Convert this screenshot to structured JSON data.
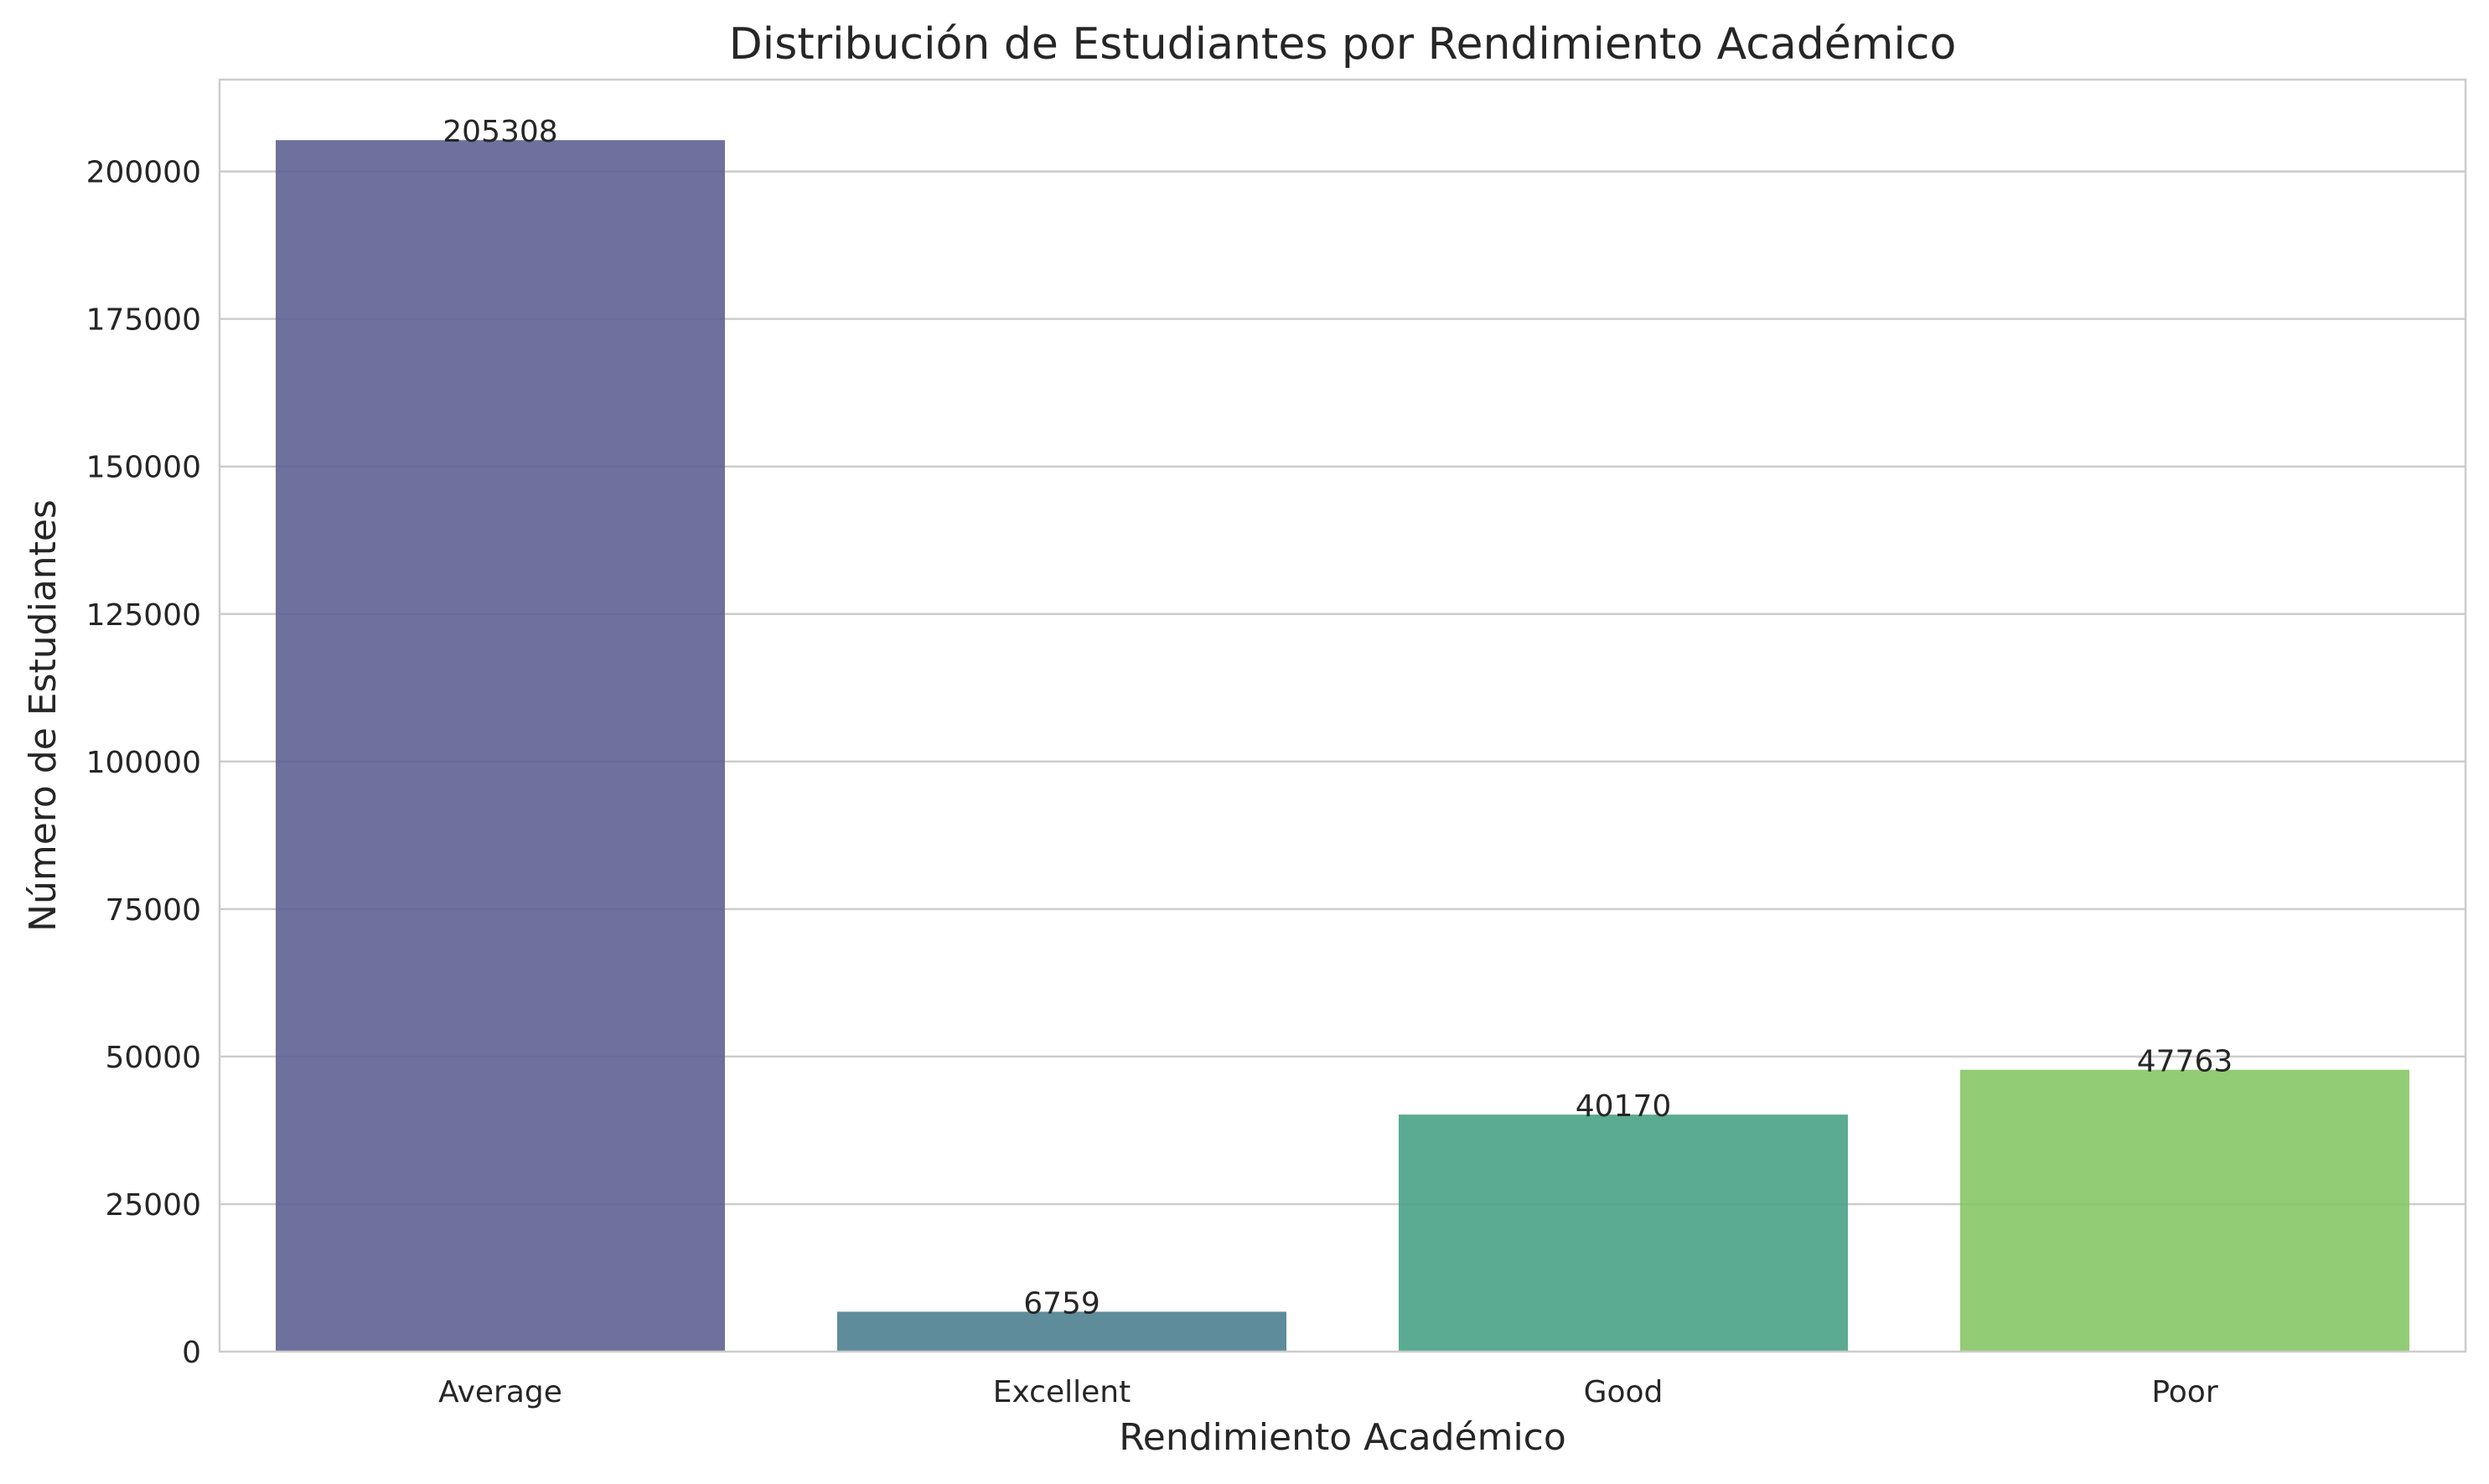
{
  "chart_data": {
    "type": "bar",
    "title": "Distribución de Estudiantes por Rendimiento Académico",
    "xlabel": "Rendimiento Académico",
    "ylabel": "Número de Estudiantes",
    "categories": [
      "Average",
      "Excellent",
      "Good",
      "Poor"
    ],
    "values": [
      205308,
      6759,
      40170,
      47763
    ],
    "data_labels": [
      "205308",
      "6759",
      "40170",
      "47763"
    ],
    "colors": [
      "#5e6291",
      "#4c7f90",
      "#48a285",
      "#86c766"
    ],
    "ylim": [
      0,
      215566
    ],
    "yticks": [
      0,
      25000,
      50000,
      75000,
      100000,
      125000,
      150000,
      175000,
      200000
    ],
    "ytick_labels": [
      "0",
      "25000",
      "50000",
      "75000",
      "100000",
      "125000",
      "150000",
      "175000",
      "200000"
    ],
    "grid": "horizontal",
    "legend": "none"
  }
}
